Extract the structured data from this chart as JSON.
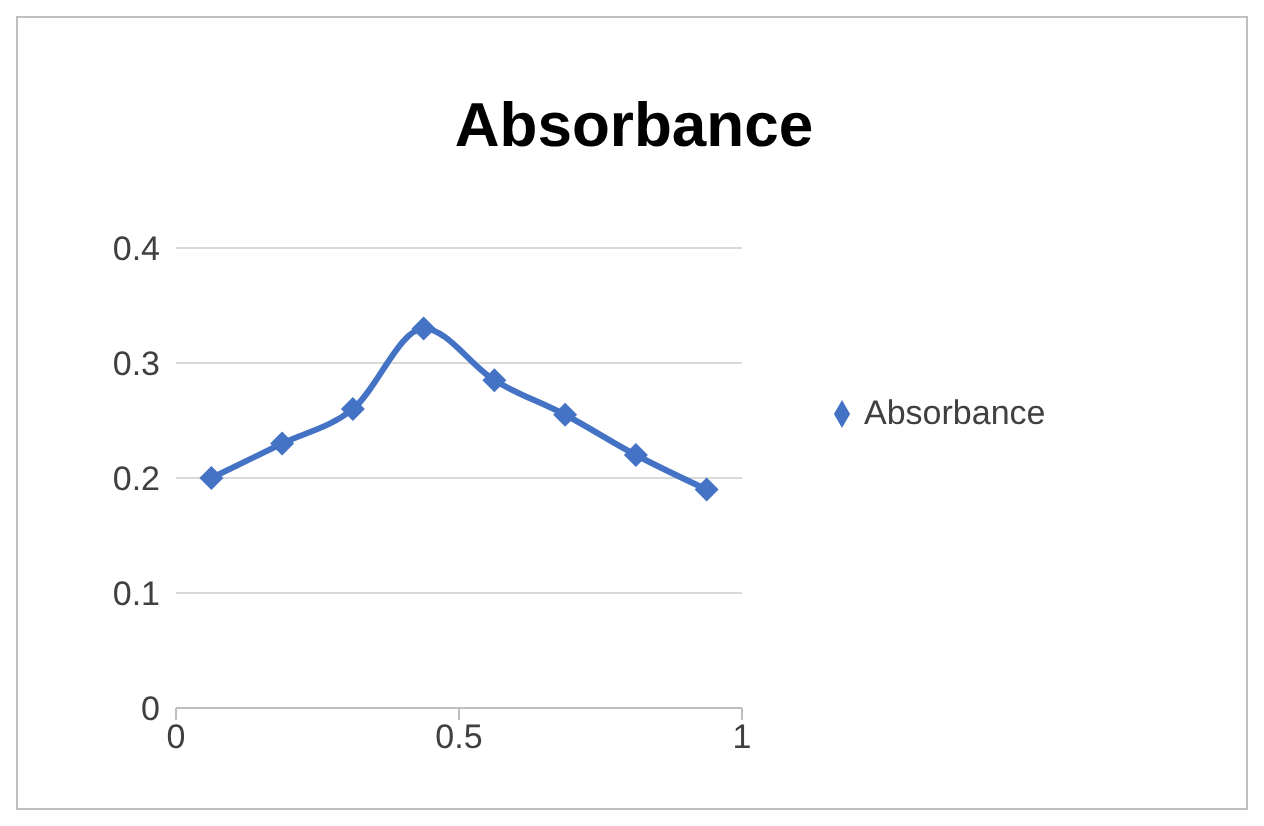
{
  "chart_data": {
    "type": "line",
    "title": "Absorbance",
    "x": [
      0.0625,
      0.1875,
      0.3125,
      0.4375,
      0.5625,
      0.6875,
      0.8125,
      0.9375
    ],
    "series": [
      {
        "name": "Absorbance",
        "color": "#4472c4",
        "values": [
          0.2,
          0.23,
          0.26,
          0.33,
          0.285,
          0.255,
          0.22,
          0.19
        ]
      }
    ],
    "xlim": [
      0,
      1
    ],
    "xticks": [
      0,
      0.5,
      1
    ],
    "ylim": [
      0,
      0.4
    ],
    "yticks": [
      0,
      0.1,
      0.2,
      0.3,
      0.4
    ],
    "grid": "y",
    "legend": "right",
    "marker": "diamond",
    "line_style": "solid"
  }
}
